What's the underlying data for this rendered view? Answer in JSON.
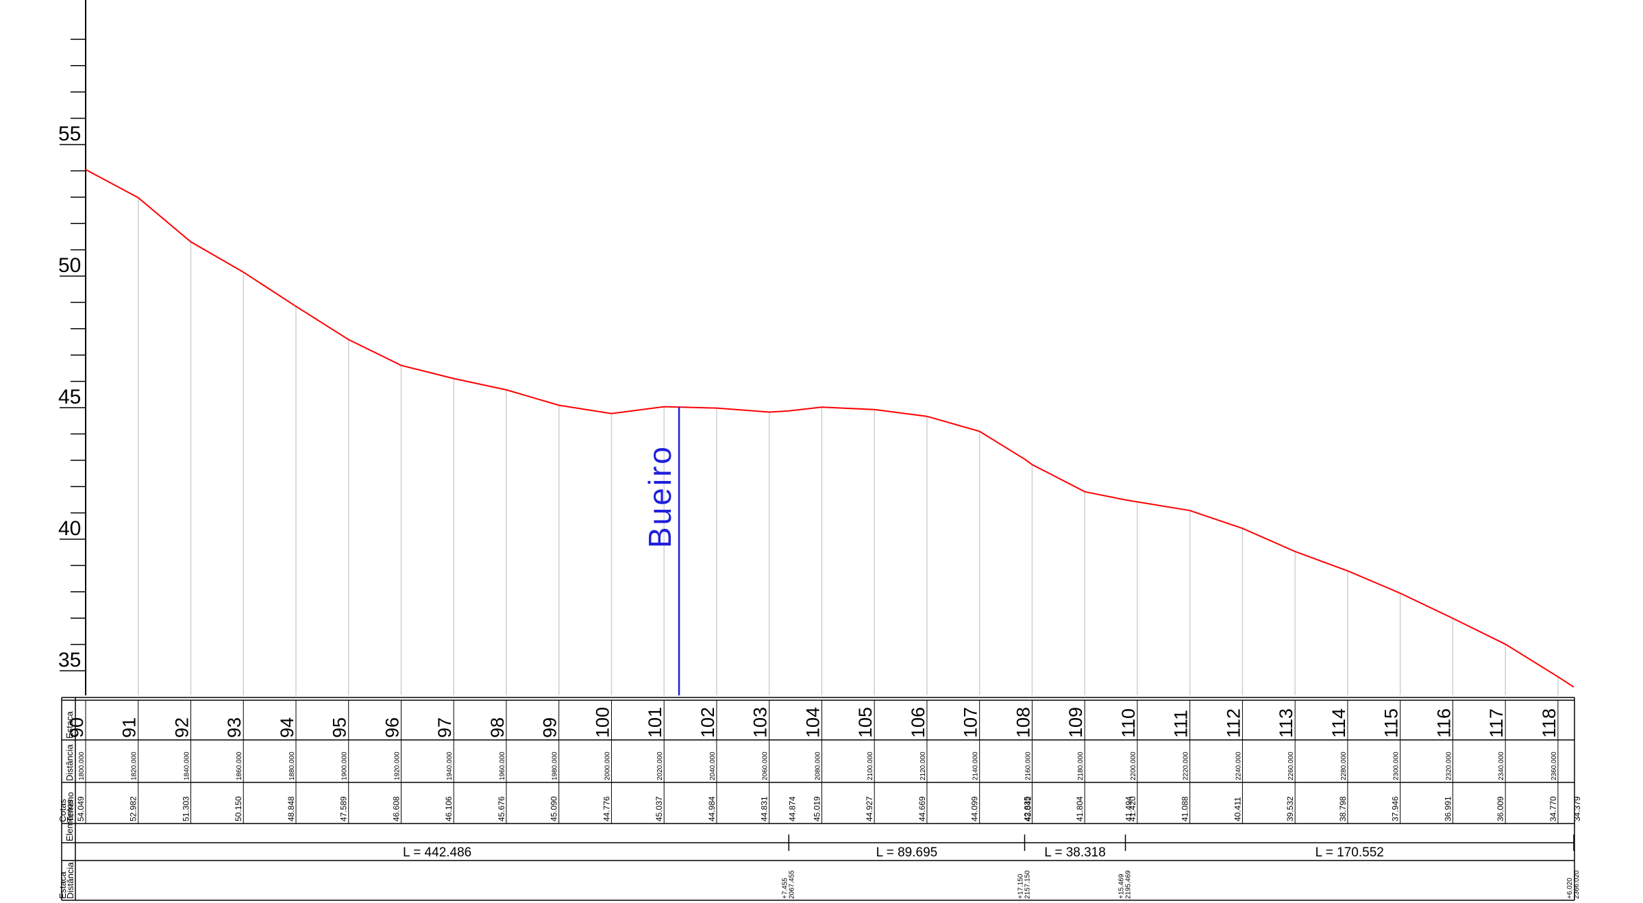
{
  "chart_data": {
    "type": "line",
    "series": [
      {
        "x": [
          1800,
          1820,
          1840,
          1860,
          1880,
          1900,
          1920,
          1940,
          1960,
          1980,
          2000,
          2020,
          2040,
          2060,
          2067.455,
          2080,
          2100,
          2120,
          2140,
          2157.15,
          2160,
          2180,
          2195.469,
          2200,
          2220,
          2240,
          2260,
          2280,
          2300,
          2320,
          2340,
          2360,
          2366.02
        ],
        "y": [
          54.049,
          52.982,
          51.303,
          50.15,
          48.848,
          47.589,
          46.608,
          46.106,
          45.676,
          45.09,
          44.776,
          45.037,
          44.984,
          44.831,
          44.874,
          45.019,
          44.927,
          44.669,
          44.099,
          43.042,
          42.835,
          41.804,
          41.494,
          41.42,
          41.088,
          40.411,
          39.532,
          38.798,
          37.946,
          36.991,
          36.009,
          34.77,
          34.379
        ]
      }
    ],
    "yticks": [
      "55",
      "50",
      "45",
      "40",
      "35"
    ],
    "ylim": [
      32.5,
      59
    ],
    "xlim": [
      1800,
      2366.02
    ],
    "stations": [
      {
        "estaca": "90",
        "dist": "1800.000",
        "cota": "54.049"
      },
      {
        "estaca": "91",
        "dist": "1820.000",
        "cota": "52.982"
      },
      {
        "estaca": "92",
        "dist": "1840.000",
        "cota": "51.303"
      },
      {
        "estaca": "93",
        "dist": "1860.000",
        "cota": "50.150"
      },
      {
        "estaca": "94",
        "dist": "1880.000",
        "cota": "48.848"
      },
      {
        "estaca": "95",
        "dist": "1900.000",
        "cota": "47.589"
      },
      {
        "estaca": "96",
        "dist": "1920.000",
        "cota": "46.608"
      },
      {
        "estaca": "97",
        "dist": "1940.000",
        "cota": "46.106"
      },
      {
        "estaca": "98",
        "dist": "1960.000",
        "cota": "45.676"
      },
      {
        "estaca": "99",
        "dist": "1980.000",
        "cota": "45.090"
      },
      {
        "estaca": "100",
        "dist": "2000.000",
        "cota": "44.776"
      },
      {
        "estaca": "101",
        "dist": "2020.000",
        "cota": "45.037"
      },
      {
        "estaca": "102",
        "dist": "2040.000",
        "cota": "44.984"
      },
      {
        "estaca": "103",
        "dist": "2060.000",
        "cota": "44.831"
      },
      {
        "estaca": "104",
        "dist": "2080.000",
        "cota": "45.019"
      },
      {
        "estaca": "105",
        "dist": "2100.000",
        "cota": "44.927"
      },
      {
        "estaca": "106",
        "dist": "2120.000",
        "cota": "44.669"
      },
      {
        "estaca": "107",
        "dist": "2140.000",
        "cota": "44.099"
      },
      {
        "estaca": "108",
        "dist": "2160.000",
        "cota": "42.835"
      },
      {
        "estaca": "109",
        "dist": "2180.000",
        "cota": "41.804"
      },
      {
        "estaca": "110",
        "dist": "2200.000",
        "cota": "41.420"
      },
      {
        "estaca": "111",
        "dist": "2220.000",
        "cota": "41.088"
      },
      {
        "estaca": "112",
        "dist": "2240.000",
        "cota": "40.411"
      },
      {
        "estaca": "113",
        "dist": "2260.000",
        "cota": "39.532"
      },
      {
        "estaca": "114",
        "dist": "2280.000",
        "cota": "38.798"
      },
      {
        "estaca": "115",
        "dist": "2300.000",
        "cota": "37.946"
      },
      {
        "estaca": "116",
        "dist": "2320.000",
        "cota": "36.991"
      },
      {
        "estaca": "117",
        "dist": "2340.000",
        "cota": "36.009"
      },
      {
        "estaca": "118",
        "dist": "2360.000",
        "cota": "34.770"
      }
    ],
    "extra_cotas": [
      {
        "dist": 2067.455,
        "cota": "44.874"
      },
      {
        "dist": 2157.15,
        "cota": "43.042"
      },
      {
        "dist": 2195.469,
        "cota": "41.494"
      },
      {
        "dist": 2366.02,
        "cota": "34.379"
      }
    ],
    "elements": [
      {
        "label": "L = 442.486",
        "from": 1800,
        "to": 2067.455
      },
      {
        "label": "L = 89.695",
        "from": 2067.455,
        "to": 2157.15
      },
      {
        "label": "L = 38.318",
        "from": 2157.15,
        "to": 2195.469
      },
      {
        "label": "L = 170.552",
        "from": 2195.469,
        "to": 2366.02
      }
    ],
    "points": [
      {
        "dist": 2067.455,
        "estaca": "+7.455",
        "distancia": "2067.455"
      },
      {
        "dist": 2157.15,
        "estaca": "+17.150",
        "distancia": "2157.150"
      },
      {
        "dist": 2195.469,
        "estaca": "+15.469",
        "distancia": "2195.469"
      },
      {
        "dist": 2366.02,
        "estaca": "+6.020",
        "distancia": "2366.020"
      }
    ],
    "annotation": {
      "label": "Bueiro",
      "dist": 2025.7
    },
    "row_headers": {
      "estaca": "Estaca",
      "distancia": "Distância",
      "cotas": "Cotas",
      "terreno": "Terreno",
      "elementos": "Elementos",
      "estaca_bottom": "Estaca",
      "distancia_bottom": "Distância",
      "horizontal": "horizontal"
    }
  },
  "colors": {
    "profile": "#ff0000",
    "bueiro": "#1f1fdc",
    "grid": "#cfcfcf",
    "axis": "#000000"
  }
}
